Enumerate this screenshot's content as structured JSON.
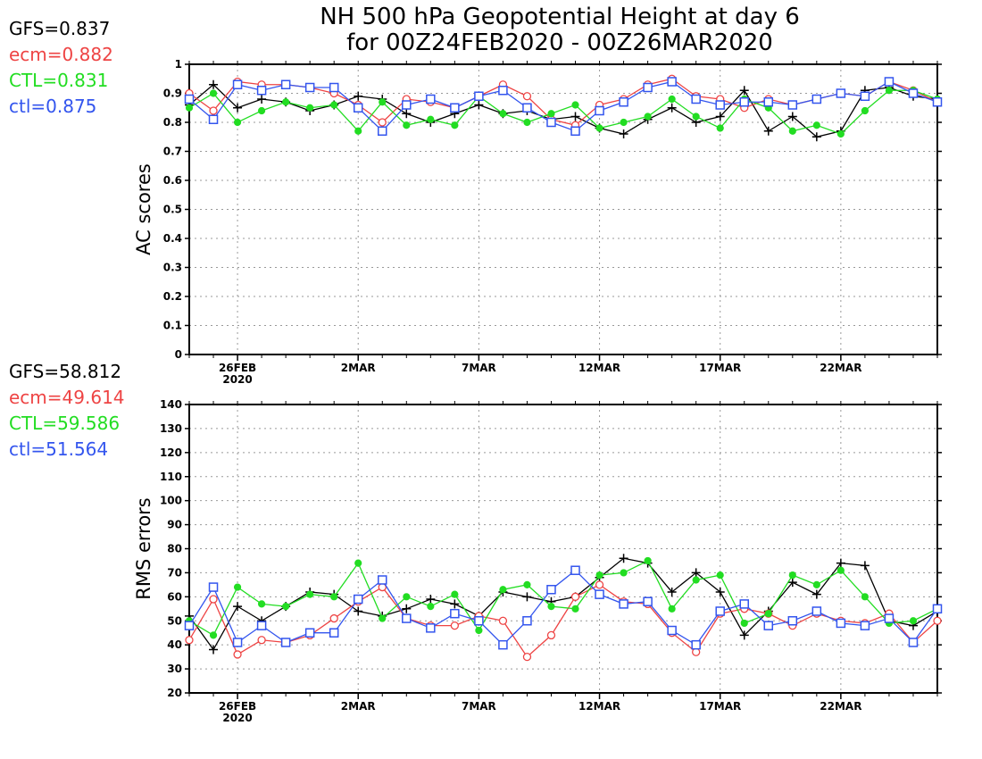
{
  "title": {
    "line1": "NH 500 hPa Geopotential Height at day 6",
    "line2": "for 00Z24FEB2020 - 00Z26MAR2020"
  },
  "colors": {
    "GFS": "#000000",
    "ecm": "#ee4444",
    "CTL": "#22dd22",
    "ctl": "#3355ee"
  },
  "chart_data": [
    {
      "type": "line",
      "ylabel": "AC scores",
      "ylim": [
        0,
        1
      ],
      "yticks": [
        "0",
        "0.1",
        "0.2",
        "0.3",
        "0.4",
        "0.5",
        "0.6",
        "0.7",
        "0.8",
        "0.9",
        "1"
      ],
      "xlim": [
        "2020-02-24",
        "2020-03-26"
      ],
      "xticks": [
        {
          "date": "2020-02-26",
          "label": "26FEB",
          "sublabel": "2020"
        },
        {
          "date": "2020-03-02",
          "label": "2MAR"
        },
        {
          "date": "2020-03-07",
          "label": "7MAR"
        },
        {
          "date": "2020-03-12",
          "label": "12MAR"
        },
        {
          "date": "2020-03-17",
          "label": "17MAR"
        },
        {
          "date": "2020-03-22",
          "label": "22MAR"
        }
      ],
      "grid": true,
      "x": [
        "2020-02-24",
        "2020-02-25",
        "2020-02-26",
        "2020-02-27",
        "2020-02-28",
        "2020-02-29",
        "2020-03-01",
        "2020-03-02",
        "2020-03-03",
        "2020-03-04",
        "2020-03-05",
        "2020-03-06",
        "2020-03-07",
        "2020-03-08",
        "2020-03-09",
        "2020-03-10",
        "2020-03-11",
        "2020-03-12",
        "2020-03-13",
        "2020-03-14",
        "2020-03-15",
        "2020-03-16",
        "2020-03-17",
        "2020-03-18",
        "2020-03-19",
        "2020-03-20",
        "2020-03-21",
        "2020-03-22",
        "2020-03-23",
        "2020-03-24",
        "2020-03-25",
        "2020-03-26"
      ],
      "series": [
        {
          "key": "GFS",
          "label": "GFS=0.837",
          "marker": "plus",
          "values": [
            0.86,
            0.93,
            0.85,
            0.88,
            0.87,
            0.84,
            0.86,
            0.89,
            0.88,
            0.83,
            0.8,
            0.83,
            0.86,
            0.83,
            0.84,
            0.81,
            0.82,
            0.78,
            0.76,
            0.81,
            0.85,
            0.8,
            0.82,
            0.91,
            0.77,
            0.82,
            0.75,
            0.77,
            0.91,
            0.92,
            0.89,
            0.88
          ]
        },
        {
          "key": "ecm",
          "label": "ecm=0.882",
          "marker": "circle",
          "values": [
            0.9,
            0.84,
            0.94,
            0.93,
            0.93,
            0.92,
            0.9,
            0.86,
            0.8,
            0.88,
            0.87,
            0.85,
            0.89,
            0.93,
            0.89,
            0.81,
            0.79,
            0.86,
            0.88,
            0.93,
            0.95,
            0.89,
            0.88,
            0.85,
            0.88,
            0.86,
            0.88,
            0.9,
            0.89,
            0.94,
            0.91,
            0.87
          ]
        },
        {
          "key": "CTL",
          "label": "CTL=0.831",
          "marker": "dot",
          "values": [
            0.85,
            0.9,
            0.8,
            0.84,
            0.87,
            0.85,
            0.86,
            0.77,
            0.87,
            0.79,
            0.81,
            0.79,
            0.89,
            0.83,
            0.8,
            0.83,
            0.86,
            0.78,
            0.8,
            0.82,
            0.88,
            0.82,
            0.78,
            0.88,
            0.85,
            0.77,
            0.79,
            0.76,
            0.84,
            0.91,
            0.91,
            0.88
          ]
        },
        {
          "key": "ctl",
          "label": "ctl=0.875",
          "marker": "square",
          "values": [
            0.88,
            0.81,
            0.93,
            0.91,
            0.93,
            0.92,
            0.92,
            0.85,
            0.77,
            0.86,
            0.88,
            0.85,
            0.89,
            0.91,
            0.85,
            0.8,
            0.77,
            0.84,
            0.87,
            0.92,
            0.94,
            0.88,
            0.86,
            0.87,
            0.87,
            0.86,
            0.88,
            0.9,
            0.89,
            0.94,
            0.9,
            0.87
          ]
        }
      ]
    },
    {
      "type": "line",
      "ylabel": "RMS errors",
      "ylim": [
        20,
        140
      ],
      "yticks": [
        "20",
        "30",
        "40",
        "50",
        "60",
        "70",
        "80",
        "90",
        "100",
        "110",
        "120",
        "130",
        "140"
      ],
      "xlim": [
        "2020-02-24",
        "2020-03-26"
      ],
      "xticks": [
        {
          "date": "2020-02-26",
          "label": "26FEB",
          "sublabel": "2020"
        },
        {
          "date": "2020-03-02",
          "label": "2MAR"
        },
        {
          "date": "2020-03-07",
          "label": "7MAR"
        },
        {
          "date": "2020-03-12",
          "label": "12MAR"
        },
        {
          "date": "2020-03-17",
          "label": "17MAR"
        },
        {
          "date": "2020-03-22",
          "label": "22MAR"
        }
      ],
      "grid": true,
      "x": [
        "2020-02-24",
        "2020-02-25",
        "2020-02-26",
        "2020-02-27",
        "2020-02-28",
        "2020-02-29",
        "2020-03-01",
        "2020-03-02",
        "2020-03-03",
        "2020-03-04",
        "2020-03-05",
        "2020-03-06",
        "2020-03-07",
        "2020-03-08",
        "2020-03-09",
        "2020-03-10",
        "2020-03-11",
        "2020-03-12",
        "2020-03-13",
        "2020-03-14",
        "2020-03-15",
        "2020-03-16",
        "2020-03-17",
        "2020-03-18",
        "2020-03-19",
        "2020-03-20",
        "2020-03-21",
        "2020-03-22",
        "2020-03-23",
        "2020-03-24",
        "2020-03-25",
        "2020-03-26"
      ],
      "series": [
        {
          "key": "GFS",
          "label": "GFS=58.812",
          "marker": "plus",
          "values": [
            52,
            38,
            56,
            50,
            56,
            62,
            61,
            54,
            52,
            55,
            59,
            57,
            52,
            62,
            60,
            58,
            60,
            68,
            76,
            74,
            62,
            70,
            62,
            44,
            54,
            66,
            61,
            74,
            73,
            50,
            48,
            54
          ]
        },
        {
          "key": "ecm",
          "label": "ecm=49.614",
          "marker": "circle",
          "values": [
            42,
            59,
            36,
            42,
            41,
            44,
            51,
            58,
            64,
            51,
            48,
            48,
            52,
            50,
            35,
            44,
            60,
            65,
            58,
            57,
            45,
            37,
            53,
            55,
            53,
            48,
            53,
            50,
            49,
            53,
            41,
            50
          ]
        },
        {
          "key": "CTL",
          "label": "CTL=59.586",
          "marker": "dot",
          "values": [
            50,
            44,
            64,
            57,
            56,
            61,
            60,
            74,
            51,
            60,
            56,
            61,
            46,
            63,
            65,
            56,
            55,
            69,
            70,
            75,
            55,
            67,
            69,
            49,
            53,
            69,
            65,
            71,
            60,
            49,
            50,
            55
          ]
        },
        {
          "key": "ctl",
          "label": "ctl=51.564",
          "marker": "square",
          "values": [
            48,
            64,
            41,
            48,
            41,
            45,
            45,
            59,
            67,
            51,
            47,
            53,
            50,
            40,
            50,
            63,
            71,
            61,
            57,
            58,
            46,
            40,
            54,
            57,
            48,
            50,
            54,
            49,
            48,
            51,
            41,
            55
          ]
        }
      ]
    }
  ]
}
